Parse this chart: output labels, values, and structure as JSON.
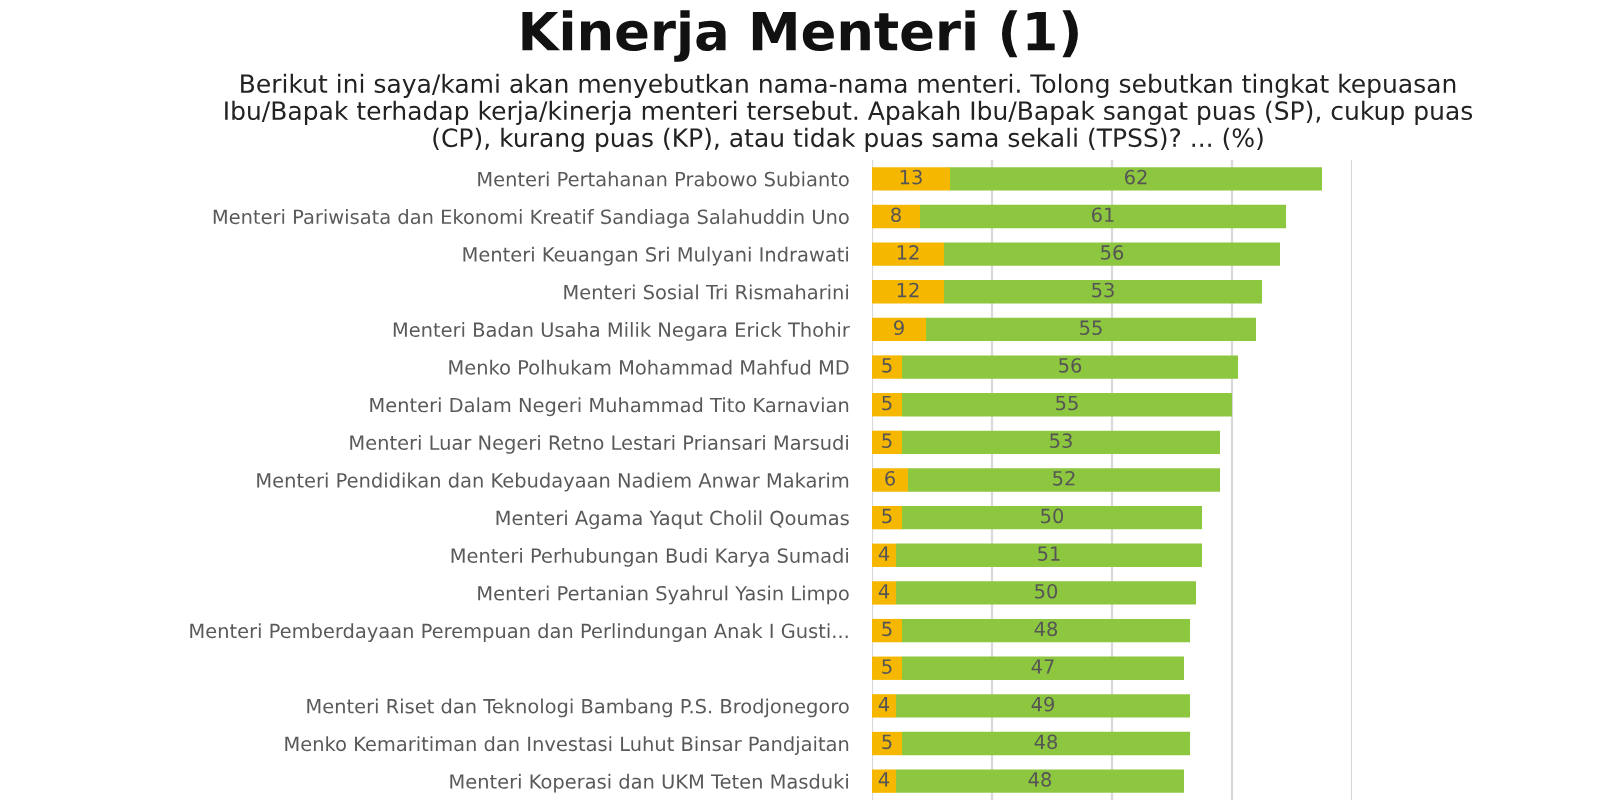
{
  "chart_data": {
    "type": "bar",
    "orientation": "horizontal",
    "stacked": true,
    "title": "Kinerja Menteri (1)",
    "subtitle": "Berikut ini saya/kami akan menyebutkan nama-nama menteri. Tolong sebutkan tingkat kepuasan\nIbu/Bapak terhadap kerja/kinerja menteri tersebut. Apakah Ibu/Bapak sangat puas (SP), cukup puas\n(CP), kurang puas (KP), atau tidak puas sama sekali (TPSS)? ... (%)",
    "categories": [
      "Menteri Pertahanan Prabowo Subianto",
      "Menteri Pariwisata dan Ekonomi Kreatif Sandiaga Salahuddin Uno",
      "Menteri Keuangan Sri Mulyani Indrawati",
      "Menteri Sosial Tri Rismaharini",
      "Menteri Badan Usaha Milik Negara Erick Thohir",
      "Menko Polhukam Mohammad Mahfud MD",
      "Menteri Dalam Negeri Muhammad Tito Karnavian",
      "Menteri Luar Negeri Retno Lestari Priansari Marsudi",
      "Menteri Pendidikan dan Kebudayaan Nadiem Anwar Makarim",
      "Menteri Agama Yaqut Cholil Qoumas",
      "Menteri Perhubungan Budi Karya Sumadi",
      "Menteri Pertanian Syahrul Yasin Limpo",
      "Menteri Pemberdayaan Perempuan dan Perlindungan Anak I Gusti...",
      null,
      "Menteri Riset dan Teknologi Bambang P.S. Brodjonegoro",
      "Menko Kemaritiman dan Investasi Luhut Binsar Pandjaitan",
      "Menteri Koperasi dan UKM Teten Masduki"
    ],
    "series": [
      {
        "color": "#f5b700",
        "values": [
          13,
          8,
          12,
          12,
          9,
          5,
          5,
          5,
          6,
          5,
          4,
          4,
          5,
          5,
          4,
          5,
          4
        ]
      },
      {
        "color": "#8dc63f",
        "values": [
          62,
          61,
          56,
          53,
          55,
          56,
          55,
          53,
          52,
          50,
          51,
          50,
          48,
          47,
          49,
          48,
          48
        ]
      }
    ],
    "xlim": [
      0,
      80
    ],
    "xticks": [
      {
        "value": 0,
        "label": null
      },
      {
        "value": 20,
        "label": null
      },
      {
        "value": 40,
        "label": null
      },
      {
        "value": 60,
        "label": null
      },
      {
        "value": 80,
        "label": null
      }
    ],
    "tick_labels": "y",
    "grid": "x",
    "data_labels": true,
    "legend": false
  }
}
